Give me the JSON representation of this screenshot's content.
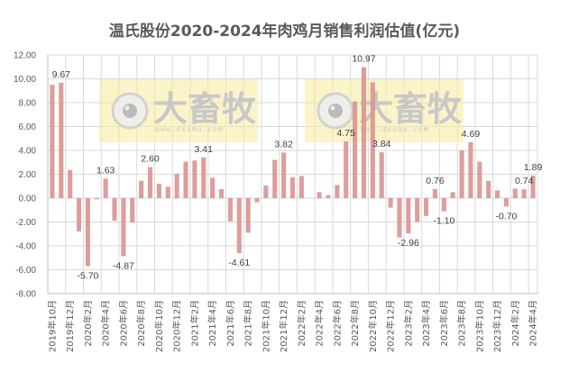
{
  "chart_data": {
    "type": "bar",
    "title": "温氏股份2020-2024年肉鸡月销售利润估值(亿元)",
    "xlabel": "",
    "ylabel": "",
    "ylim": [
      -8,
      12
    ],
    "yticks": [
      "12.00",
      "10.00",
      "8.00",
      "6.00",
      "4.00",
      "2.00",
      "0.00",
      "-2.00",
      "-4.00",
      "-6.00",
      "-8.00"
    ],
    "grid": true,
    "legend": "none",
    "bar_color": "#d99694",
    "categories": [
      "2019年10月",
      "2019年11月",
      "2019年12月",
      "2020年1月",
      "2020年2月",
      "2020年3月",
      "2020年4月",
      "2020年5月",
      "2020年6月",
      "2020年7月",
      "2020年8月",
      "2020年9月",
      "2020年10月",
      "2020年11月",
      "2020年12月",
      "2021年1月",
      "2021年2月",
      "2021年3月",
      "2021年4月",
      "2021年5月",
      "2021年6月",
      "2021年7月",
      "2021年8月",
      "2021年9月",
      "2021年10月",
      "2021年11月",
      "2021年12月",
      "2022年1月",
      "2022年2月",
      "2022年3月",
      "2022年4月",
      "2022年5月",
      "2022年6月",
      "2022年7月",
      "2022年8月",
      "2022年9月",
      "2022年10月",
      "2022年11月",
      "2022年12月",
      "2023年1月",
      "2023年2月",
      "2023年3月",
      "2023年4月",
      "2023年5月",
      "2023年6月",
      "2023年7月",
      "2023年8月",
      "2023年9月",
      "2023年10月",
      "2023年11月",
      "2023年12月",
      "2024年1月",
      "2024年2月",
      "2024年3月",
      "2024年4月"
    ],
    "values": [
      9.5,
      9.67,
      2.35,
      -2.8,
      -5.7,
      -0.1,
      1.63,
      -1.9,
      -4.87,
      -2.05,
      1.45,
      2.6,
      1.2,
      0.95,
      2.05,
      3.05,
      3.15,
      3.41,
      1.7,
      0.75,
      -1.95,
      -4.61,
      -2.9,
      -0.35,
      1.05,
      3.2,
      3.82,
      1.75,
      1.85,
      0.0,
      0.5,
      0.25,
      1.1,
      4.75,
      8.1,
      10.97,
      9.7,
      3.84,
      -0.8,
      -3.3,
      -2.96,
      -2.0,
      -1.5,
      0.76,
      -1.1,
      0.5,
      4.0,
      4.69,
      3.05,
      1.45,
      0.65,
      -0.7,
      0.8,
      0.74,
      1.89
    ],
    "tick_labels": [
      "2019年10月",
      "2019年12月",
      "2020年2月",
      "2020年4月",
      "2020年6月",
      "2020年8月",
      "2020年10月",
      "2020年12月",
      "2021年2月",
      "2021年4月",
      "2021年6月",
      "2021年8月",
      "2021年10月",
      "2021年12月",
      "2022年2月",
      "2022年4月",
      "2022年6月",
      "2022年8月",
      "2022年10月",
      "2022年12月",
      "2023年2月",
      "2023年4月",
      "2023年6月",
      "2023年8月",
      "2023年10月",
      "2023年12月",
      "2024年2月",
      "2024年4月"
    ],
    "annotations": [
      {
        "index": 1,
        "text": "9.67"
      },
      {
        "index": 4,
        "text": "-5.70"
      },
      {
        "index": 6,
        "text": "1.63"
      },
      {
        "index": 8,
        "text": "-4.87"
      },
      {
        "index": 11,
        "text": "2.60"
      },
      {
        "index": 17,
        "text": "3.41"
      },
      {
        "index": 21,
        "text": "-4.61"
      },
      {
        "index": 26,
        "text": "3.82"
      },
      {
        "index": 33,
        "text": "4.75"
      },
      {
        "index": 35,
        "text": "10.97"
      },
      {
        "index": 37,
        "text": "3.84"
      },
      {
        "index": 40,
        "text": "-2.96"
      },
      {
        "index": 43,
        "text": "0.76"
      },
      {
        "index": 44,
        "text": "-1.10"
      },
      {
        "index": 47,
        "text": "4.69"
      },
      {
        "index": 51,
        "text": "-0.70"
      },
      {
        "index": 53,
        "text": "0.74"
      },
      {
        "index": 54,
        "text": "1.89"
      }
    ]
  },
  "watermark": {
    "brand_text": "大畜牧",
    "url_text": "www.dxumu.com"
  }
}
